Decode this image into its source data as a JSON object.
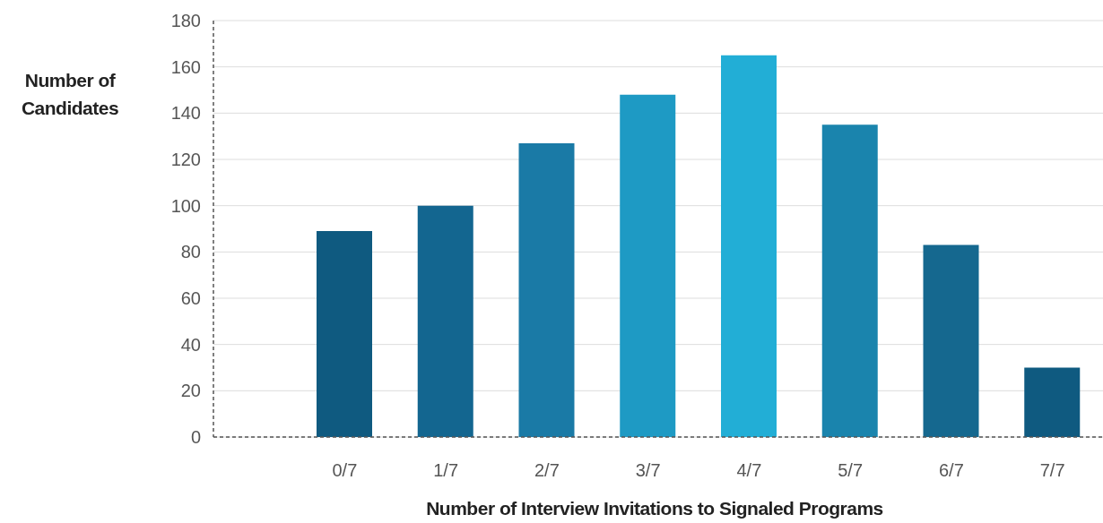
{
  "chart_data": {
    "type": "bar",
    "xlabel": "Number of Interview Invitations to Signaled Programs",
    "ylabel": "Number of Candidates",
    "categories": [
      "0/7",
      "1/7",
      "2/7",
      "3/7",
      "4/7",
      "5/7",
      "6/7",
      "7/7"
    ],
    "values": [
      89,
      100,
      127,
      148,
      165,
      135,
      83,
      30
    ],
    "colors": [
      "#0f5a80",
      "#136690",
      "#1a7aa6",
      "#1e9ac4",
      "#22aed6",
      "#1a84ad",
      "#15688f",
      "#0f5a80"
    ],
    "ylim": [
      0,
      180
    ],
    "yticks": [
      0,
      20,
      40,
      60,
      80,
      100,
      120,
      140,
      160,
      180
    ],
    "grid": "y"
  }
}
